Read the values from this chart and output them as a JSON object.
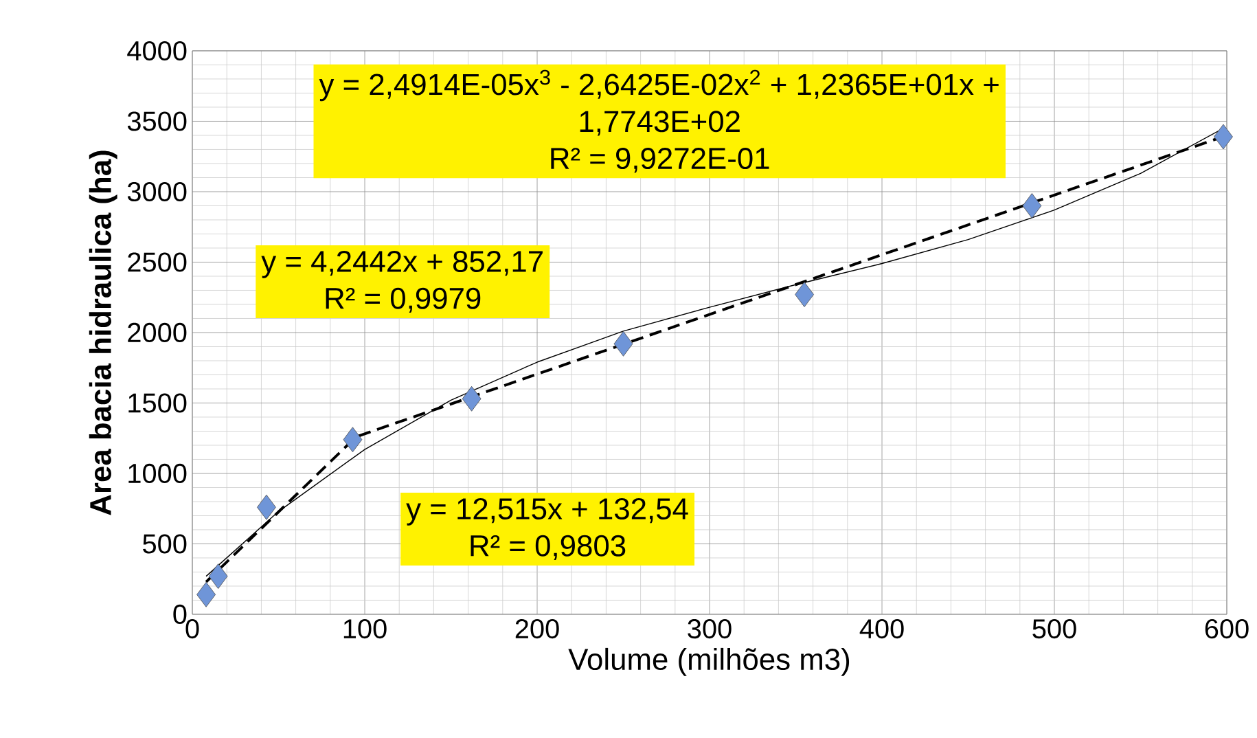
{
  "chart_data": {
    "type": "scatter",
    "xlabel": "Volume (milhões m3)",
    "ylabel": "Area bacia hidraulica (ha)",
    "xlim": [
      0,
      600
    ],
    "xticks": [
      0,
      100,
      200,
      300,
      400,
      500,
      600
    ],
    "ylim": [
      0,
      4000
    ],
    "yticks": [
      0,
      500,
      1000,
      1500,
      2000,
      2500,
      3000,
      3500,
      4000
    ],
    "grid": true,
    "series": [
      {
        "type": "line",
        "color": "#000000",
        "line_style": "solid",
        "marker": "none",
        "x": [
          8,
          50,
          100,
          150,
          200,
          250,
          300,
          350,
          400,
          450,
          500,
          550,
          598
        ],
        "values": [
          270,
          730,
          1170,
          1520,
          1790,
          2010,
          2180,
          2340,
          2490,
          2660,
          2870,
          3130,
          3450
        ]
      },
      {
        "type": "line",
        "color": "#000000",
        "line_style": "dashed",
        "marker": "none",
        "x": [
          8,
          95,
          600
        ],
        "values": [
          230,
          1260,
          3400
        ]
      },
      {
        "color": "#6f95d8",
        "marker": "diamond",
        "x": [
          8,
          15,
          43,
          93,
          162,
          250,
          355,
          487,
          598
        ],
        "values": [
          140,
          270,
          760,
          1240,
          1530,
          1920,
          2270,
          2900,
          3390
        ]
      }
    ],
    "annotations": [
      "y = 2,4914E-05x$^{3}$ - 2,6425E-02x$^{2}$ + 1,2365E+01x +",
      "1,7743E+02",
      "R² = 9,9272E-01",
      "y = 4,2442x + 852,17",
      "R² = 0,9979",
      "y = 12,515x + 132,54",
      "R² = 0,9803"
    ]
  }
}
